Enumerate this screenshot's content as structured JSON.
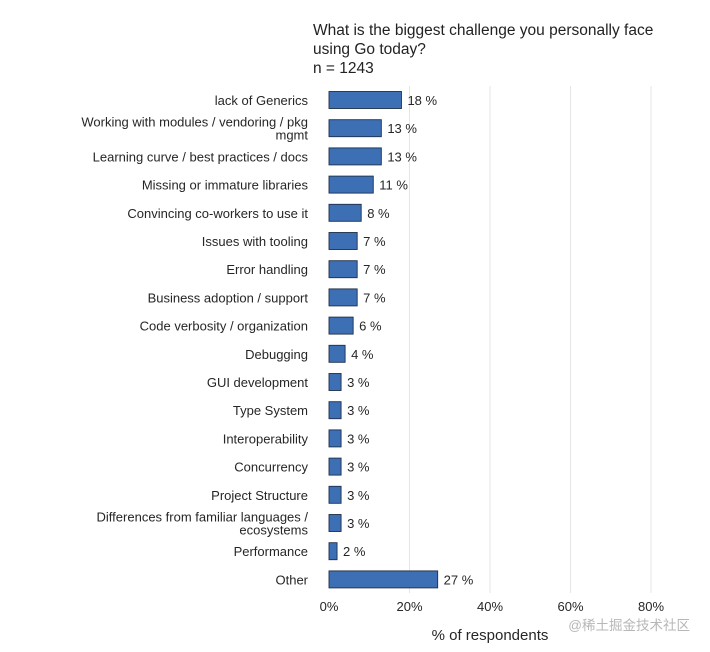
{
  "chart_data": {
    "type": "bar",
    "orientation": "horizontal",
    "title": "What is the biggest challenge you personally face using Go today?",
    "subtitle": "n = 1243",
    "xlabel": "% of respondents",
    "ylabel": "",
    "xlim": [
      0,
      80
    ],
    "xticks": [
      0,
      20,
      40,
      60,
      80
    ],
    "xtick_labels": [
      "0%",
      "20%",
      "40%",
      "60%",
      "80%"
    ],
    "grid": "vertical",
    "bar_color": "#3d6fb5",
    "value_suffix": " %",
    "categories": [
      [
        "lack of Generics"
      ],
      [
        "Working with modules / vendoring / pkg",
        "mgmt"
      ],
      [
        "Learning curve / best practices / docs"
      ],
      [
        "Missing or immature libraries"
      ],
      [
        "Convincing co-workers to use it"
      ],
      [
        "Issues with tooling"
      ],
      [
        "Error handling"
      ],
      [
        "Business adoption / support"
      ],
      [
        "Code verbosity / organization"
      ],
      [
        "Debugging"
      ],
      [
        "GUI development"
      ],
      [
        "Type System"
      ],
      [
        "Interoperability"
      ],
      [
        "Concurrency"
      ],
      [
        "Project Structure"
      ],
      [
        "Differences from familiar languages /",
        "ecosystems"
      ],
      [
        "Performance"
      ],
      [
        "Other"
      ]
    ],
    "values": [
      18,
      13,
      13,
      11,
      8,
      7,
      7,
      7,
      6,
      4,
      3,
      3,
      3,
      3,
      3,
      3,
      2,
      27
    ]
  },
  "watermark": "@稀土掘金技术社区"
}
